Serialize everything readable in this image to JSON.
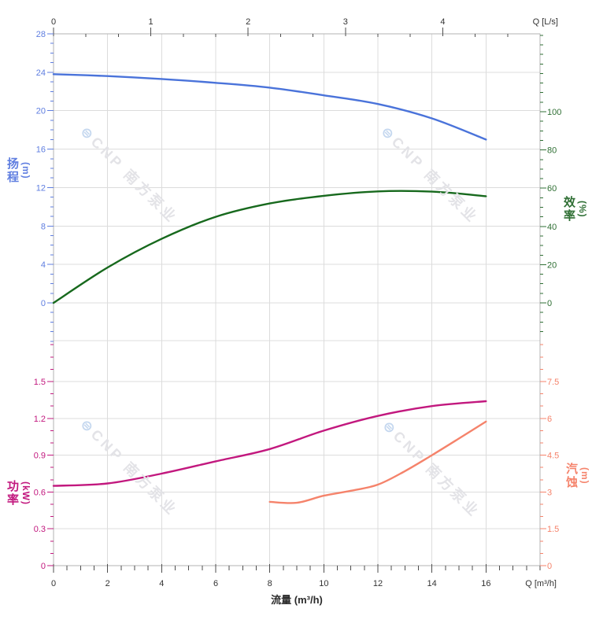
{
  "watermark": {
    "logo_icon": "⊜",
    "text": "CNP 南方泵业"
  },
  "colors": {
    "head": "#4a73da",
    "head_axis": "#5f7ee0",
    "efficiency": "#17691d",
    "efficiency_axis": "#2f6f34",
    "power": "#c2187e",
    "power_axis": "#c2187e",
    "npsh": "#f5836b",
    "npsh_axis": "#f5836b",
    "axis_text": "#333333",
    "axis_dark": "#4d4d4d",
    "grid": "#dcdcdc",
    "border": "#b3b3b3",
    "wm_text": "#e3e3e7",
    "wm_logo": "#c4d7ef",
    "x_title": "#2b2b2b"
  },
  "axes": {
    "top": {
      "title": "Q [L/s]",
      "ticks": [
        "0",
        "1",
        "2",
        "3",
        "4"
      ]
    },
    "bottom": {
      "title": "Q [m³/h]",
      "ticks": [
        "0",
        "2",
        "4",
        "6",
        "8",
        "10",
        "12",
        "14",
        "16"
      ],
      "axis_label": "流量 (m³/h)"
    },
    "head": {
      "title_cn": "扬程",
      "title_unit": "(m)",
      "ticks": [
        "28",
        "24",
        "20",
        "16",
        "12",
        "8",
        "4",
        "0"
      ]
    },
    "efficiency": {
      "title_cn": "效率",
      "title_unit": "(%)",
      "ticks": [
        "100",
        "80",
        "60",
        "40",
        "20",
        "0"
      ]
    },
    "power": {
      "title_cn": "功率",
      "title_unit": "(kW)",
      "ticks": [
        "1.5",
        "1.2",
        "0.9",
        "0.6",
        "0.3",
        "0"
      ]
    },
    "npsh": {
      "title_cn": "汽蚀",
      "title_unit": "(m)",
      "ticks": [
        "7.5",
        "6",
        "4.5",
        "3",
        "1.5",
        "0"
      ]
    }
  },
  "chart_data": [
    {
      "type": "line",
      "panel": "top",
      "title": "扬程 / 效率 vs 流量",
      "x_axis_top": {
        "label": "Q [L/s]",
        "range": [
          0,
          4
        ],
        "minor_step_Ls": 0.3333
      },
      "x_axis_bottom_shared": {
        "label": "流量 (m³/h)",
        "range": [
          0,
          16
        ]
      },
      "grid": true,
      "series": [
        {
          "name": "扬程",
          "unit": "m",
          "scale": "head",
          "color_key": "head",
          "y_axis": "left",
          "ylim": [
            0,
            28
          ],
          "x": [
            0,
            2,
            4,
            6,
            8,
            10,
            12,
            14,
            16
          ],
          "values": [
            23.8,
            23.6,
            23.3,
            22.9,
            22.4,
            21.6,
            20.7,
            19.2,
            17.0
          ]
        },
        {
          "name": "效率",
          "unit": "%",
          "scale": "efficiency",
          "color_key": "efficiency",
          "y_axis": "right",
          "ylim": [
            0,
            100
          ],
          "x": [
            0,
            2,
            4,
            6,
            8,
            10,
            12,
            14,
            16
          ],
          "values": [
            0,
            18.5,
            33.5,
            45,
            52,
            56,
            58.3,
            58.2,
            55.8
          ]
        }
      ]
    },
    {
      "type": "line",
      "panel": "bottom",
      "title": "功率 / 汽蚀 vs 流量",
      "x_axis_bottom": {
        "label": "流量 (m³/h)",
        "range": [
          0,
          16
        ],
        "corner_label": "Q [m³/h]"
      },
      "grid": true,
      "series": [
        {
          "name": "功率",
          "unit": "kW",
          "scale": "power",
          "color_key": "power",
          "y_axis": "left",
          "ylim": [
            0,
            1.5
          ],
          "x": [
            0,
            2,
            4,
            6,
            8,
            10,
            12,
            14,
            16
          ],
          "values": [
            0.65,
            0.67,
            0.75,
            0.85,
            0.95,
            1.1,
            1.22,
            1.3,
            1.34
          ]
        },
        {
          "name": "汽蚀",
          "unit": "m",
          "scale": "npsh",
          "color_key": "npsh",
          "y_axis": "right",
          "ylim": [
            0,
            7.5
          ],
          "x": [
            8,
            9,
            10,
            11,
            12,
            13,
            14,
            15,
            16
          ],
          "values": [
            2.6,
            2.56,
            2.85,
            3.05,
            3.3,
            3.85,
            4.5,
            5.18,
            5.87
          ]
        }
      ]
    }
  ]
}
